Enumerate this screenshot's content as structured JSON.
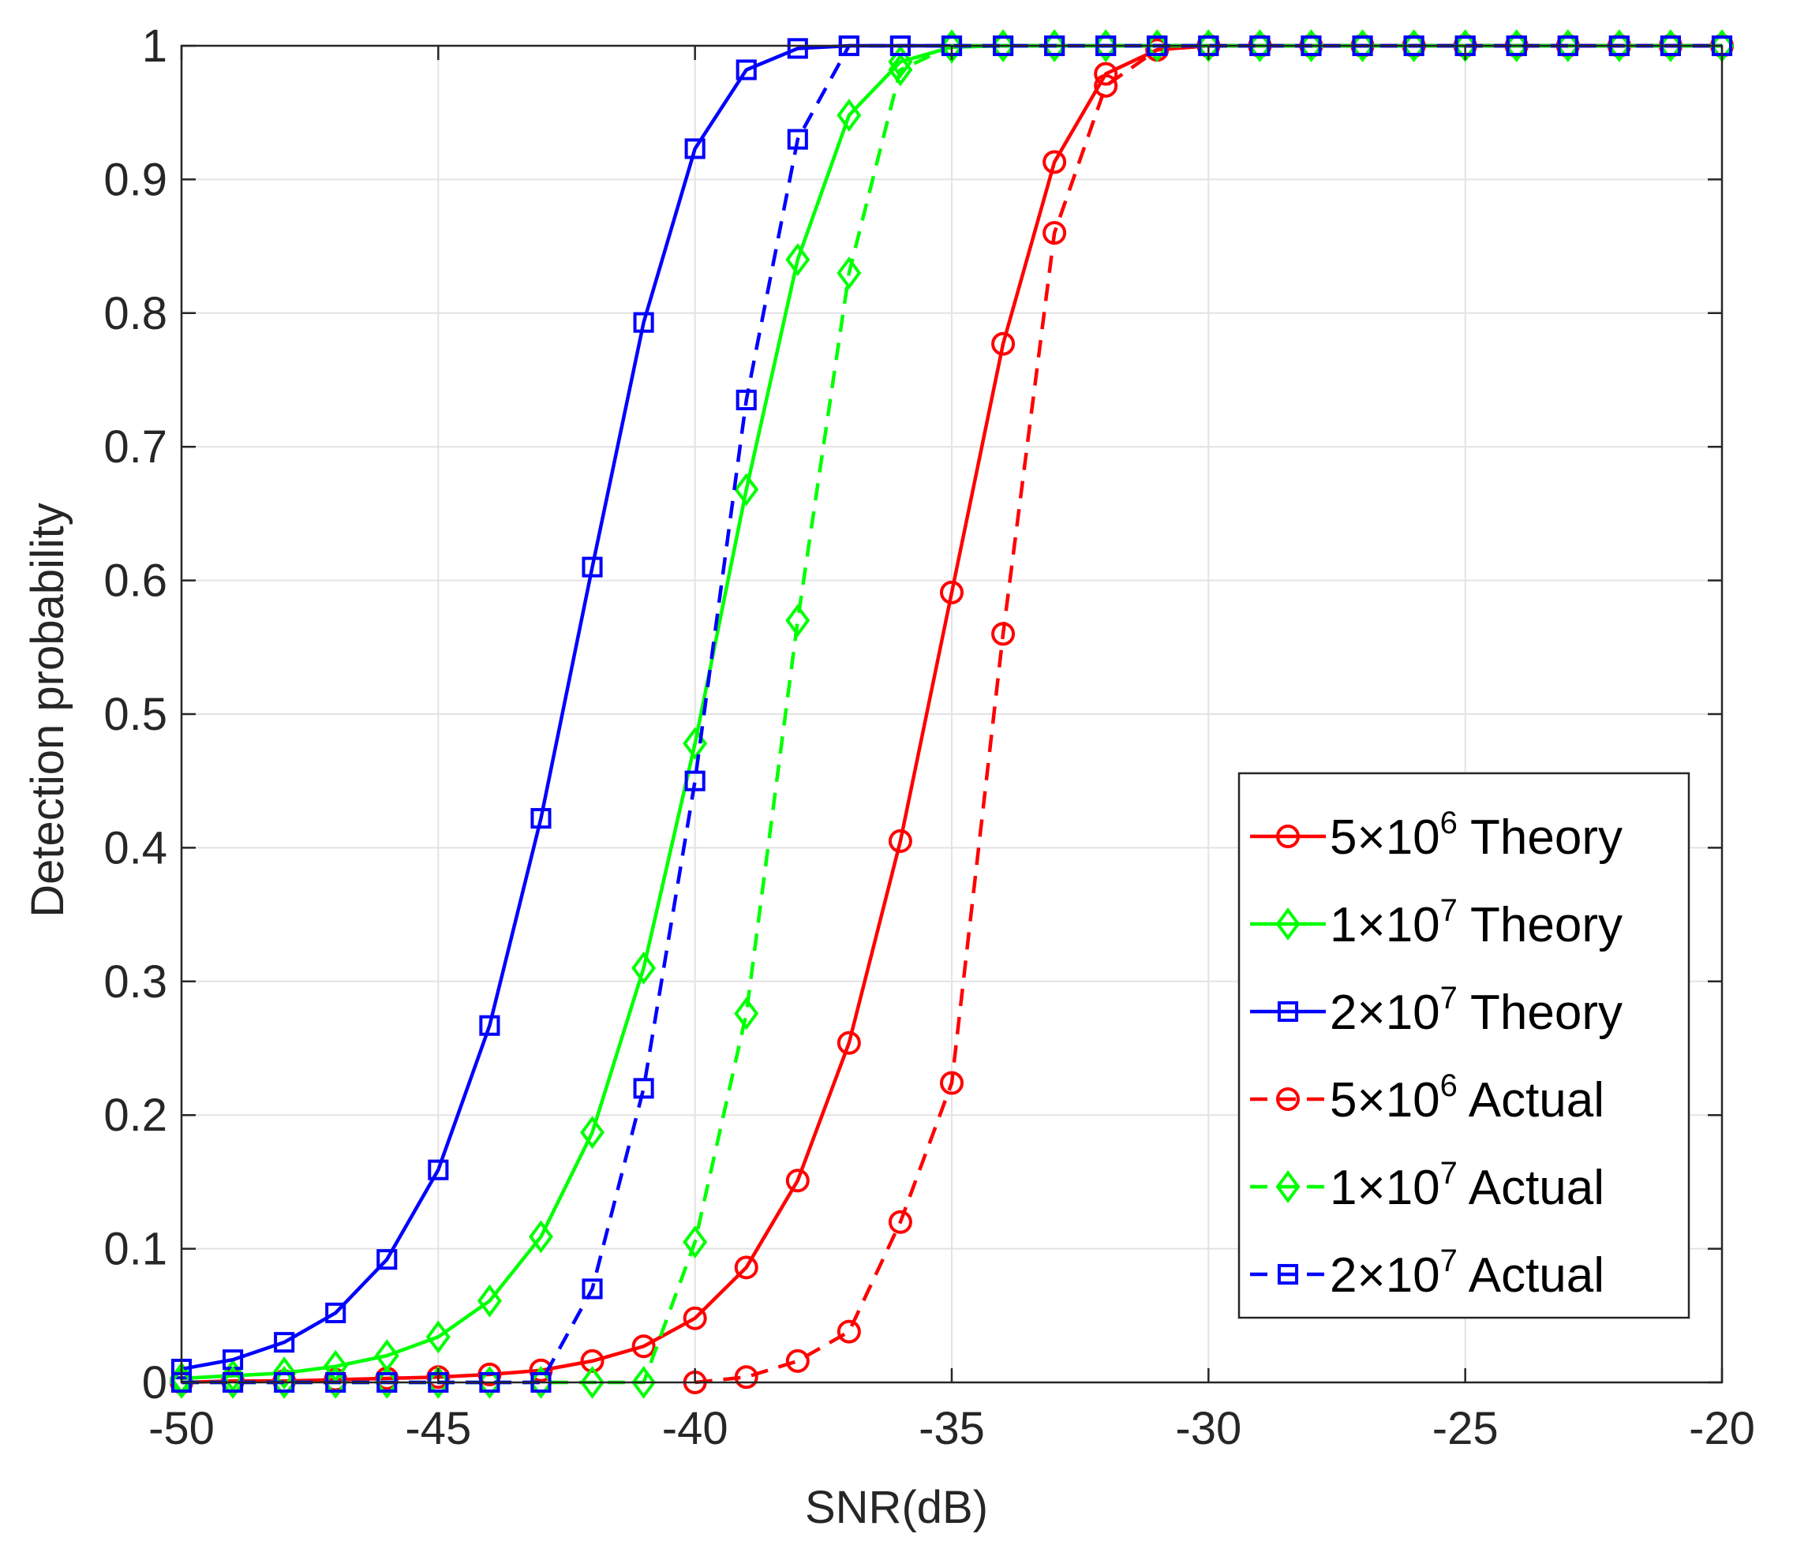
{
  "chart_data": {
    "type": "line",
    "title": "",
    "xlabel": "SNR(dB)",
    "ylabel": "Detection probability",
    "xlim": [
      -50,
      -20
    ],
    "ylim": [
      0,
      1
    ],
    "grid": true,
    "legend_position": "bottom-right",
    "x": [
      -50,
      -49,
      -48,
      -47,
      -46,
      -45,
      -44,
      -43,
      -42,
      -41,
      -40,
      -39,
      -38,
      -37,
      -36,
      -35,
      -34,
      -33,
      -32,
      -31,
      -30,
      -29,
      -28,
      -27,
      -26,
      -25,
      -24,
      -23,
      -22,
      -21,
      -20
    ],
    "xticks": [
      -50,
      -45,
      -40,
      -35,
      -30,
      -25,
      -20
    ],
    "xtick_labels": [
      "-50",
      "-45",
      "-40",
      "-35",
      "-30",
      "-25",
      "-20"
    ],
    "yticks": [
      0,
      0.1,
      0.2,
      0.3,
      0.4,
      0.5,
      0.6,
      0.7,
      0.8,
      0.9,
      1
    ],
    "ytick_labels": [
      "0",
      "0.1",
      "0.2",
      "0.3",
      "0.4",
      "0.5",
      "0.6",
      "0.7",
      "0.8",
      "0.9",
      "1"
    ],
    "series": [
      {
        "name": "5×10^6 Theory",
        "legend_base": "5×10",
        "legend_exp": "6",
        "legend_suffix": " Theory",
        "color": "#ff0000",
        "marker": "circle",
        "dash": "solid",
        "values": [
          0.0,
          0.001,
          0.001,
          0.002,
          0.003,
          0.004,
          0.006,
          0.009,
          0.016,
          0.027,
          0.048,
          0.086,
          0.151,
          0.254,
          0.405,
          0.591,
          0.777,
          0.913,
          0.979,
          0.997,
          1,
          1,
          1,
          1,
          1,
          1,
          1,
          1,
          1,
          1,
          1
        ]
      },
      {
        "name": "1×10^7 Theory",
        "legend_base": "1×10",
        "legend_exp": "7",
        "legend_suffix": " Theory",
        "color": "#00ff00",
        "marker": "diamond",
        "dash": "solid",
        "values": [
          0.003,
          0.005,
          0.007,
          0.012,
          0.02,
          0.034,
          0.061,
          0.109,
          0.187,
          0.31,
          0.478,
          0.668,
          0.84,
          0.948,
          0.988,
          0.999,
          1,
          1,
          1,
          1,
          1,
          1,
          1,
          1,
          1,
          1,
          1,
          1,
          1,
          1,
          1
        ]
      },
      {
        "name": "2×10^7 Theory",
        "legend_base": "2×10",
        "legend_exp": "7",
        "legend_suffix": " Theory",
        "color": "#0000ff",
        "marker": "square",
        "dash": "solid",
        "values": [
          0.01,
          0.017,
          0.03,
          0.052,
          0.092,
          0.159,
          0.267,
          0.422,
          0.61,
          0.793,
          0.923,
          0.982,
          0.998,
          1,
          1,
          1,
          1,
          1,
          1,
          1,
          1,
          1,
          1,
          1,
          1,
          1,
          1,
          1,
          1,
          1,
          1
        ]
      },
      {
        "name": "5×10^6 Actual",
        "legend_base": "5×10",
        "legend_exp": "6",
        "legend_suffix": " Actual",
        "color": "#ff0000",
        "marker": "circle",
        "dash": "dashed",
        "values": [
          null,
          null,
          null,
          null,
          null,
          null,
          null,
          null,
          null,
          null,
          0.0,
          0.004,
          0.016,
          0.038,
          0.12,
          0.224,
          0.56,
          0.86,
          0.97,
          0.997,
          1,
          1,
          1,
          1,
          1,
          1,
          1,
          1,
          1,
          1,
          1
        ]
      },
      {
        "name": "1×10^7 Actual",
        "legend_base": "1×10",
        "legend_exp": "7",
        "legend_suffix": " Actual",
        "color": "#00ff00",
        "marker": "diamond",
        "dash": "dashed",
        "values": [
          0,
          0,
          0,
          0,
          0,
          0,
          0,
          0,
          0,
          0,
          0.105,
          0.276,
          0.57,
          0.83,
          0.982,
          1,
          1,
          1,
          1,
          1,
          1,
          1,
          1,
          1,
          1,
          1,
          1,
          1,
          1,
          1,
          1
        ]
      },
      {
        "name": "2×10^7 Actual",
        "legend_base": "2×10",
        "legend_exp": "7",
        "legend_suffix": " Actual",
        "color": "#0000ff",
        "marker": "square",
        "dash": "dashed",
        "values": [
          0,
          0,
          0,
          0,
          0,
          0,
          0,
          0,
          0.07,
          0.22,
          0.45,
          0.735,
          0.93,
          1,
          1,
          1,
          1,
          1,
          1,
          1,
          1,
          1,
          1,
          1,
          1,
          1,
          1,
          1,
          1,
          1,
          1
        ]
      }
    ]
  }
}
